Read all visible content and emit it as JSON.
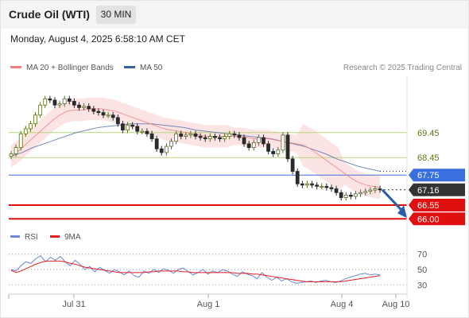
{
  "header": {
    "instrument": "Crude Oil (WTI)",
    "timeframe": "30 MIN",
    "datetime": "Monday, August 4, 2025 6:58:10 AM CET",
    "copyright": "Research © 2025 Trading Central"
  },
  "colors": {
    "ma20": "#f08080",
    "ma50": "#3b5ea8",
    "bollinger_fill": "#fbd5d5",
    "green_level": "#b5d67a",
    "blue_level": "#3a6fe0",
    "red_level": "#e01010",
    "price_tag": "#333333",
    "candle_up": "#5a6e1a",
    "candle_down": "#2a2a2a",
    "rsi": "#6a8ad8",
    "rsi_ma": "#e02020",
    "arrow": "#2a5fa8"
  },
  "chart_data": [
    {
      "type": "candlestick",
      "title": "",
      "legend": [
        {
          "name": "MA 20 + Bollinger Bands",
          "color": "#f08080"
        },
        {
          "name": "MA 50",
          "color": "#3b5ea8"
        }
      ],
      "x_ticks": [
        "Jul 31",
        "Aug 1",
        "Aug 4",
        "Aug 10"
      ],
      "levels": [
        {
          "value": 69.45,
          "label": "69.45",
          "kind": "resistance"
        },
        {
          "value": 68.45,
          "label": "68.45",
          "kind": "resistance"
        },
        {
          "value": 67.75,
          "label": "67.75",
          "kind": "pivot"
        },
        {
          "value": 67.16,
          "label": "67.16",
          "kind": "last_price"
        },
        {
          "value": 66.55,
          "label": "66.55",
          "kind": "support"
        },
        {
          "value": 66.0,
          "label": "66.00",
          "kind": "support"
        }
      ],
      "ylim": [
        65.85,
        71.7
      ],
      "close_series": [
        68.6,
        68.85,
        69.4,
        69.6,
        69.8,
        70.15,
        70.55,
        70.8,
        70.75,
        70.55,
        70.6,
        70.8,
        70.7,
        70.55,
        70.45,
        70.5,
        70.4,
        70.3,
        70.25,
        70.15,
        70.15,
        70.05,
        69.8,
        69.55,
        69.75,
        69.7,
        69.5,
        69.5,
        69.4,
        69.2,
        68.8,
        68.65,
        68.9,
        69.1,
        69.4,
        69.3,
        69.35,
        69.4,
        69.3,
        69.25,
        69.2,
        69.3,
        69.25,
        69.2,
        69.3,
        69.4,
        69.35,
        69.25,
        69.0,
        68.85,
        69.05,
        69.25,
        69.0,
        68.7,
        68.6,
        68.75,
        69.35,
        68.4,
        67.9,
        67.4,
        67.35,
        67.4,
        67.35,
        67.3,
        67.3,
        67.25,
        67.2,
        67.05,
        66.85,
        66.95,
        66.9,
        67.0,
        67.05,
        67.1,
        67.15,
        67.2,
        67.16
      ],
      "ma20_series": [
        68.5,
        68.7,
        68.95,
        69.2,
        69.45,
        69.7,
        69.95,
        70.15,
        70.3,
        70.35,
        70.35,
        70.4,
        70.4,
        70.4,
        70.35,
        70.3,
        70.2,
        70.1,
        70.0,
        69.9,
        69.8,
        69.7,
        69.6,
        69.55,
        69.5,
        69.45,
        69.4,
        69.35,
        69.3,
        69.3,
        69.3,
        69.3,
        69.3,
        69.3,
        69.25,
        69.2,
        69.2,
        69.2,
        69.15,
        69.1,
        69.05,
        69.0,
        68.95,
        68.8,
        68.6,
        68.4,
        68.2,
        68.0,
        67.8,
        67.6,
        67.45,
        67.35,
        67.3,
        67.25
      ],
      "ma50_series": [
        68.5,
        68.65,
        68.85,
        69.0,
        69.15,
        69.3,
        69.45,
        69.55,
        69.65,
        69.7,
        69.75,
        69.8,
        69.8,
        69.8,
        69.75,
        69.7,
        69.65,
        69.55,
        69.5,
        69.45,
        69.4,
        69.35,
        69.3,
        69.25,
        69.2,
        69.1,
        69.0,
        68.9,
        68.75,
        68.6,
        68.4,
        68.25,
        68.1,
        68.0,
        67.9
      ],
      "forecast": {
        "from": 67.16,
        "to": 66.0
      }
    },
    {
      "type": "line",
      "title": "",
      "legend": [
        {
          "name": "RSI",
          "color": "#6a8ad8"
        },
        {
          "name": "9MA",
          "color": "#e02020"
        }
      ],
      "y_ticks": [
        30,
        50,
        70
      ],
      "ylim": [
        22,
        78
      ],
      "series": [
        {
          "name": "RSI",
          "values": [
            50,
            48,
            55,
            60,
            58,
            64,
            68,
            60,
            66,
            62,
            67,
            60,
            55,
            62,
            57,
            50,
            54,
            47,
            53,
            49,
            45,
            50,
            47,
            43,
            48,
            42,
            40,
            48,
            45,
            50,
            46,
            51,
            49,
            45,
            50,
            52,
            47,
            43,
            46,
            50,
            44,
            48,
            46,
            50,
            48,
            44,
            41,
            47,
            44,
            42,
            38,
            46,
            40,
            36,
            40,
            35,
            38,
            34,
            32,
            33,
            34,
            35,
            33,
            35,
            36,
            34,
            33,
            35,
            38,
            40,
            42,
            44,
            45,
            43,
            44,
            43
          ]
        },
        {
          "name": "9MA",
          "values": [
            49,
            46,
            48,
            51,
            54,
            57,
            59,
            61,
            61,
            61,
            61,
            60,
            58,
            57,
            55,
            53,
            52,
            51,
            50,
            49,
            48,
            47,
            46,
            46,
            46,
            46,
            46,
            46,
            47,
            47,
            48,
            48,
            48,
            48,
            48,
            47,
            47,
            46,
            46,
            46,
            46,
            46,
            46,
            46,
            46,
            46,
            45,
            45,
            45,
            44,
            44,
            43,
            42,
            41,
            40,
            39,
            38,
            37,
            36,
            35,
            34,
            34,
            34,
            34,
            34,
            34,
            34,
            34,
            35,
            36,
            37,
            38,
            39,
            40,
            41,
            42
          ]
        }
      ]
    }
  ]
}
